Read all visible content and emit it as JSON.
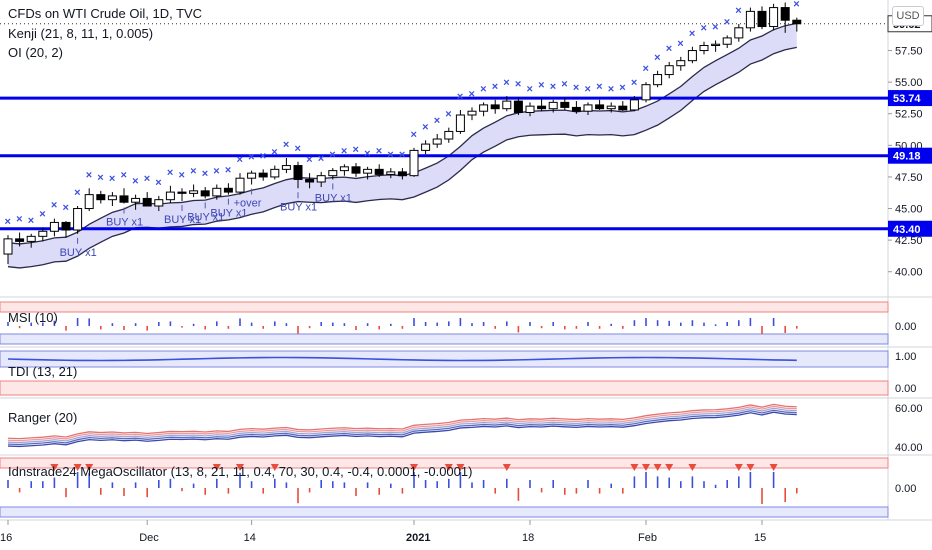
{
  "legend": {
    "title": "CFDs on WTI Crude Oil, 1D, TVC",
    "kenji": "Kenji (21, 8, 11, 1, 0.005)",
    "oi": "OI (20, 2)"
  },
  "currency_button": "USD",
  "price_axis": {
    "ticks": [
      "60.00",
      "57.50",
      "55.00",
      "52.50",
      "50.00",
      "47.50",
      "45.00",
      "42.50",
      "40.00"
    ],
    "tick_values": [
      60.0,
      57.5,
      55.0,
      52.5,
      50.0,
      47.5,
      45.0,
      42.5,
      40.0
    ],
    "last_price": "59.62",
    "levels": [
      {
        "label": "53.74",
        "value": 53.74
      },
      {
        "label": "49.18",
        "value": 49.18
      },
      {
        "label": "43.40",
        "value": 43.4
      }
    ]
  },
  "time_axis": [
    "16",
    "Dec",
    "14",
    "2021",
    "18",
    "Feb",
    "15"
  ],
  "signal_labels": [
    {
      "text": "BUY x1",
      "bar": 6
    },
    {
      "text": "BUY x1",
      "bar": 10
    },
    {
      "text": "BUY x1",
      "bar": 15
    },
    {
      "text": "BUY x1",
      "bar": 17
    },
    {
      "text": "BUY x1",
      "bar": 19
    },
    {
      "text": "+over",
      "bar": 21
    },
    {
      "text": "BUY x1",
      "bar": 25
    },
    {
      "text": "BUY x1",
      "bar": 28
    }
  ],
  "panes": {
    "msi": {
      "label": "MSI (10)",
      "ticks": [
        "0.00"
      ]
    },
    "tdi": {
      "label": "TDI (13, 21)",
      "ticks": [
        "1.00",
        "0.00"
      ]
    },
    "ranger": {
      "label": "Ranger (20)",
      "ticks": [
        "60.00",
        "40.00"
      ]
    },
    "mega": {
      "label": "Idnstrade24 MegaOscillator (13, 8, 21, 11, 0.4, 70, 30, 0.4, -0.4, 0.0001, -0.0001)",
      "ticks": [
        "0.00"
      ]
    }
  },
  "colors": {
    "candle_up": "#ffffff",
    "candle_down": "#000000",
    "x_marker": "#3b4fe0",
    "level_line": "#0000ee",
    "band_fill": "#dcdcf8",
    "band_line": "#2a2a4a",
    "msi_bar": "#3b4fe0",
    "red": "#e74c3c"
  },
  "chart_data": {
    "type": "candlestick",
    "title": "CFDs on WTI Crude Oil, 1D, TVC",
    "ylim": [
      38.0,
      61.5
    ],
    "candles": [
      [
        41.4,
        42.9,
        40.6,
        42.6
      ],
      [
        42.6,
        43.1,
        42.0,
        42.4
      ],
      [
        42.4,
        43.0,
        41.9,
        42.8
      ],
      [
        42.8,
        43.5,
        42.4,
        43.2
      ],
      [
        43.2,
        44.2,
        42.8,
        43.9
      ],
      [
        43.9,
        44.0,
        42.7,
        43.3
      ],
      [
        43.3,
        45.2,
        43.0,
        45.0
      ],
      [
        45.0,
        46.6,
        44.8,
        46.1
      ],
      [
        46.1,
        46.4,
        45.4,
        45.7
      ],
      [
        45.7,
        46.3,
        45.2,
        46.0
      ],
      [
        46.0,
        46.6,
        45.4,
        45.5
      ],
      [
        45.5,
        46.1,
        44.9,
        45.8
      ],
      [
        45.8,
        46.3,
        45.2,
        45.2
      ],
      [
        45.2,
        46.0,
        44.8,
        45.7
      ],
      [
        45.7,
        46.8,
        45.4,
        46.3
      ],
      [
        46.3,
        46.6,
        45.6,
        46.2
      ],
      [
        46.2,
        46.9,
        45.9,
        46.4
      ],
      [
        46.4,
        46.7,
        45.8,
        46.0
      ],
      [
        46.0,
        46.9,
        45.7,
        46.6
      ],
      [
        46.6,
        47.0,
        46.1,
        46.3
      ],
      [
        46.3,
        47.8,
        46.1,
        47.4
      ],
      [
        47.4,
        48.0,
        46.9,
        47.8
      ],
      [
        47.8,
        48.1,
        47.2,
        47.5
      ],
      [
        47.5,
        48.4,
        47.3,
        48.1
      ],
      [
        48.1,
        49.0,
        47.8,
        48.4
      ],
      [
        48.4,
        48.7,
        46.6,
        47.3
      ],
      [
        47.3,
        47.8,
        46.6,
        47.1
      ],
      [
        47.1,
        47.9,
        46.7,
        47.6
      ],
      [
        47.6,
        48.2,
        47.3,
        48.0
      ],
      [
        48.0,
        48.5,
        47.6,
        48.3
      ],
      [
        48.3,
        48.6,
        47.5,
        47.8
      ],
      [
        47.8,
        48.3,
        47.3,
        48.1
      ],
      [
        48.1,
        48.5,
        47.5,
        47.7
      ],
      [
        47.7,
        48.2,
        47.4,
        47.9
      ],
      [
        47.9,
        48.2,
        47.3,
        47.6
      ],
      [
        47.6,
        49.8,
        47.5,
        49.6
      ],
      [
        49.6,
        50.4,
        49.3,
        50.1
      ],
      [
        50.1,
        50.9,
        49.8,
        50.5
      ],
      [
        50.5,
        51.4,
        50.2,
        51.1
      ],
      [
        51.1,
        52.8,
        50.9,
        52.4
      ],
      [
        52.4,
        53.0,
        52.0,
        52.7
      ],
      [
        52.7,
        53.4,
        52.3,
        53.2
      ],
      [
        53.2,
        53.6,
        52.5,
        52.9
      ],
      [
        52.9,
        53.9,
        52.7,
        53.5
      ],
      [
        53.5,
        53.8,
        52.4,
        52.6
      ],
      [
        52.6,
        53.4,
        52.3,
        53.1
      ],
      [
        53.1,
        53.7,
        52.7,
        52.9
      ],
      [
        52.9,
        53.6,
        52.6,
        53.4
      ],
      [
        53.4,
        53.8,
        52.8,
        53.0
      ],
      [
        53.0,
        53.5,
        52.5,
        52.7
      ],
      [
        52.7,
        53.4,
        52.4,
        53.2
      ],
      [
        53.2,
        53.6,
        52.8,
        52.9
      ],
      [
        52.9,
        53.4,
        52.6,
        53.1
      ],
      [
        53.1,
        53.5,
        52.7,
        52.8
      ],
      [
        52.8,
        53.9,
        52.7,
        53.6
      ],
      [
        53.6,
        55.0,
        53.4,
        54.8
      ],
      [
        54.8,
        55.9,
        54.6,
        55.6
      ],
      [
        55.6,
        56.6,
        55.3,
        56.3
      ],
      [
        56.3,
        57.0,
        55.9,
        56.7
      ],
      [
        56.7,
        57.8,
        56.5,
        57.5
      ],
      [
        57.5,
        58.2,
        57.2,
        57.9
      ],
      [
        57.9,
        58.3,
        57.4,
        58.0
      ],
      [
        58.0,
        58.7,
        57.7,
        58.5
      ],
      [
        58.5,
        59.6,
        58.2,
        59.3
      ],
      [
        59.3,
        60.9,
        59.0,
        60.6
      ],
      [
        60.6,
        61.0,
        59.2,
        59.4
      ],
      [
        59.4,
        61.2,
        59.1,
        60.9
      ],
      [
        60.9,
        61.3,
        58.9,
        59.9
      ],
      [
        59.9,
        60.1,
        59.0,
        59.62
      ]
    ]
  }
}
